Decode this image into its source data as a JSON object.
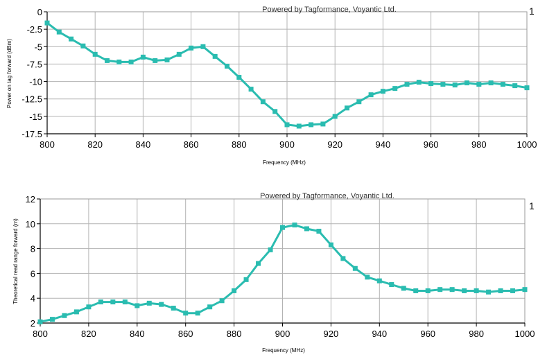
{
  "chart_data": [
    {
      "type": "line",
      "credit": "Powered by Tagformance, Voyantic Ltd.",
      "xlabel": "Frequency (MHz)",
      "ylabel": "Power on tag forward (dBm)",
      "xlim": [
        800,
        1000
      ],
      "ylim": [
        -17.5,
        0
      ],
      "xticks": [
        800,
        820,
        840,
        860,
        880,
        900,
        920,
        940,
        960,
        980,
        1000
      ],
      "yticks": [
        0,
        -2.5,
        -5,
        -7.5,
        -10,
        -12.5,
        -15,
        -17.5
      ],
      "ytick_labels": [
        "0",
        "-2.5",
        "-5",
        "-7.5",
        "-10",
        "-12.5",
        "-15",
        "-17.5"
      ],
      "grid": true,
      "legend_label": "1",
      "legend_position": "top-right outside",
      "series": [
        {
          "color": "#2abcb0",
          "x": [
            800,
            805,
            810,
            815,
            820,
            825,
            830,
            835,
            840,
            845,
            850,
            855,
            860,
            865,
            870,
            875,
            880,
            885,
            890,
            895,
            900,
            905,
            910,
            915,
            920,
            925,
            930,
            935,
            940,
            945,
            950,
            955,
            960,
            965,
            970,
            975,
            980,
            985,
            990,
            995,
            1000
          ],
          "y": [
            -1.6,
            -2.9,
            -3.9,
            -4.9,
            -6.1,
            -7.0,
            -7.2,
            -7.2,
            -6.5,
            -7.0,
            -6.9,
            -6.1,
            -5.2,
            -5.0,
            -6.4,
            -7.8,
            -9.4,
            -11.1,
            -12.9,
            -14.3,
            -16.2,
            -16.4,
            -16.2,
            -16.1,
            -15.0,
            -13.8,
            -12.9,
            -11.9,
            -11.4,
            -11.0,
            -10.4,
            -10.1,
            -10.3,
            -10.4,
            -10.5,
            -10.2,
            -10.4,
            -10.2,
            -10.4,
            -10.6,
            -10.9
          ]
        }
      ]
    },
    {
      "type": "line",
      "credit": "Powered by Tagformance, Voyantic Ltd.",
      "xlabel": "Frequency (MHz)",
      "ylabel": "Theoretical read range forward (m)",
      "xlim": [
        800,
        1000
      ],
      "ylim": [
        2,
        12
      ],
      "xticks": [
        800,
        820,
        840,
        860,
        880,
        900,
        920,
        940,
        960,
        980,
        1000
      ],
      "yticks": [
        2,
        4,
        6,
        8,
        10,
        12
      ],
      "ytick_labels": [
        "2",
        "4",
        "6",
        "8",
        "10",
        "12"
      ],
      "grid": true,
      "legend_label": "1",
      "legend_position": "top-right outside",
      "series": [
        {
          "color": "#2abcb0",
          "x": [
            800,
            805,
            810,
            815,
            820,
            825,
            830,
            835,
            840,
            845,
            850,
            855,
            860,
            865,
            870,
            875,
            880,
            885,
            890,
            895,
            900,
            905,
            910,
            915,
            920,
            925,
            930,
            935,
            940,
            945,
            950,
            955,
            960,
            965,
            970,
            975,
            980,
            985,
            990,
            995,
            1000
          ],
          "y": [
            2.1,
            2.3,
            2.6,
            2.9,
            3.3,
            3.7,
            3.7,
            3.7,
            3.4,
            3.6,
            3.5,
            3.2,
            2.8,
            2.8,
            3.3,
            3.8,
            4.6,
            5.5,
            6.8,
            7.9,
            9.7,
            9.9,
            9.6,
            9.4,
            8.3,
            7.2,
            6.4,
            5.7,
            5.4,
            5.1,
            4.8,
            4.6,
            4.6,
            4.7,
            4.7,
            4.6,
            4.6,
            4.5,
            4.6,
            4.6,
            4.7
          ]
        }
      ]
    }
  ]
}
